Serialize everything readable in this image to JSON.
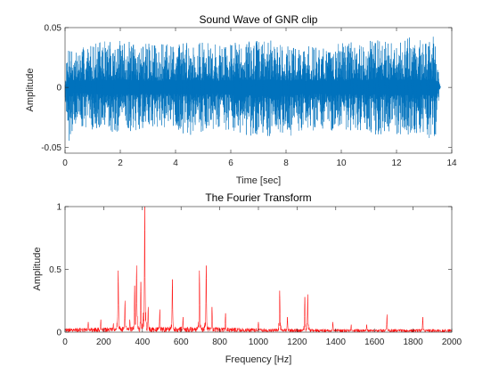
{
  "colors": {
    "wave": "#0072BD",
    "spectrum": "#FF0000",
    "axes": "#262626",
    "background": "#FFFFFF"
  },
  "chart_data": [
    {
      "type": "line",
      "title": "Sound Wave of GNR clip",
      "xlabel": "Time [sec]",
      "ylabel": "Amplitude",
      "xlim": [
        0,
        14
      ],
      "ylim": [
        -0.055,
        0.05
      ],
      "xticks": [
        0,
        2,
        4,
        6,
        8,
        10,
        12,
        14
      ],
      "xtick_labels": [
        "0",
        "2",
        "4",
        "6",
        "8",
        "10",
        "12",
        "14"
      ],
      "yticks": [
        -0.05,
        0,
        0.05
      ],
      "ytick_labels": [
        "-0.05",
        "0",
        "0.05"
      ],
      "grid": false,
      "series": [
        {
          "color": "#0072BD",
          "duration": 13.6,
          "envelope": {
            "t": [
              0.0,
              0.15,
              0.3,
              0.5,
              0.8,
              1.5,
              2.5,
              3.5,
              4.5,
              5.5,
              6.5,
              7.5,
              8.5,
              9.5,
              10.5,
              11.5,
              12.5,
              13.0,
              13.4,
              13.55,
              13.6
            ],
            "upper": [
              0.008,
              0.045,
              0.03,
              0.032,
              0.036,
              0.04,
              0.038,
              0.036,
              0.04,
              0.036,
              0.04,
              0.04,
              0.034,
              0.036,
              0.038,
              0.04,
              0.042,
              0.04,
              0.045,
              0.004,
              0.0
            ],
            "lower": [
              -0.008,
              -0.048,
              -0.032,
              -0.032,
              -0.034,
              -0.04,
              -0.036,
              -0.034,
              -0.04,
              -0.034,
              -0.04,
              -0.05,
              -0.036,
              -0.036,
              -0.038,
              -0.04,
              -0.042,
              -0.04,
              -0.045,
              -0.004,
              0.0
            ]
          }
        }
      ]
    },
    {
      "type": "line",
      "title": "The Fourier Transform",
      "xlabel": "Frequency [Hz]",
      "ylabel": "Amplitude",
      "xlim": [
        0,
        2000
      ],
      "ylim": [
        0,
        1
      ],
      "xticks": [
        0,
        200,
        400,
        600,
        800,
        1000,
        1200,
        1400,
        1600,
        1800,
        2000
      ],
      "xtick_labels": [
        "0",
        "200",
        "400",
        "600",
        "800",
        "1000",
        "1200",
        "1400",
        "1600",
        "1800",
        "2000"
      ],
      "yticks": [
        0,
        0.5,
        1
      ],
      "ytick_labels": [
        "0",
        "0.5",
        "1"
      ],
      "grid": false,
      "series": [
        {
          "color": "#FF0000",
          "peaks": [
            {
              "f": 120,
              "a": 0.08
            },
            {
              "f": 185,
              "a": 0.1
            },
            {
              "f": 250,
              "a": 0.07
            },
            {
              "f": 275,
              "a": 0.49
            },
            {
              "f": 310,
              "a": 0.25
            },
            {
              "f": 335,
              "a": 0.1
            },
            {
              "f": 360,
              "a": 0.37
            },
            {
              "f": 370,
              "a": 0.53
            },
            {
              "f": 392,
              "a": 0.4
            },
            {
              "f": 412,
              "a": 1.0
            },
            {
              "f": 430,
              "a": 0.2
            },
            {
              "f": 490,
              "a": 0.18
            },
            {
              "f": 555,
              "a": 0.42
            },
            {
              "f": 610,
              "a": 0.12
            },
            {
              "f": 695,
              "a": 0.49
            },
            {
              "f": 730,
              "a": 0.53
            },
            {
              "f": 760,
              "a": 0.2
            },
            {
              "f": 830,
              "a": 0.15
            },
            {
              "f": 1000,
              "a": 0.08
            },
            {
              "f": 1110,
              "a": 0.33
            },
            {
              "f": 1150,
              "a": 0.12
            },
            {
              "f": 1240,
              "a": 0.28
            },
            {
              "f": 1255,
              "a": 0.3
            },
            {
              "f": 1385,
              "a": 0.08
            },
            {
              "f": 1480,
              "a": 0.06
            },
            {
              "f": 1560,
              "a": 0.06
            },
            {
              "f": 1665,
              "a": 0.14
            },
            {
              "f": 1850,
              "a": 0.12
            }
          ]
        }
      ]
    }
  ]
}
